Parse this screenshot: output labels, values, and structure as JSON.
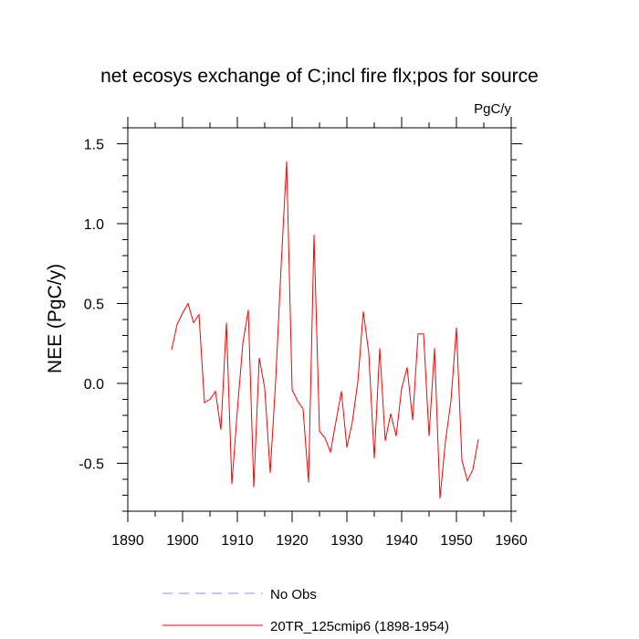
{
  "chart_data": {
    "type": "line",
    "title": "net ecosys exchange of C;incl fire flx;pos for source",
    "units_label": "PgC/y",
    "ylabel": "NEE  (PgC/y)",
    "xlabel": "",
    "xlim": [
      1890,
      1960
    ],
    "ylim": [
      -0.8,
      1.6
    ],
    "x_ticks": [
      1890,
      1900,
      1910,
      1920,
      1930,
      1940,
      1950,
      1960
    ],
    "x_tick_labels": [
      "1890",
      "1900",
      "1910",
      "1920",
      "1930",
      "1940",
      "1950",
      "1960"
    ],
    "y_ticks": [
      -0.5,
      0.0,
      0.5,
      1.0,
      1.5
    ],
    "y_tick_labels": [
      "-0.5",
      "0.0",
      "0.5",
      "1.0",
      "1.5"
    ],
    "grid": false,
    "legend_position": "bottom",
    "series": [
      {
        "name": "20TR_125cmip6 (1898-1954)",
        "color": "#ff0000",
        "style": "solid",
        "x": [
          1898,
          1899,
          1900,
          1901,
          1902,
          1903,
          1904,
          1905,
          1906,
          1907,
          1908,
          1909,
          1910,
          1911,
          1912,
          1913,
          1914,
          1915,
          1916,
          1917,
          1918,
          1919,
          1920,
          1921,
          1922,
          1923,
          1924,
          1925,
          1926,
          1927,
          1928,
          1929,
          1930,
          1931,
          1932,
          1933,
          1934,
          1935,
          1936,
          1937,
          1938,
          1939,
          1940,
          1941,
          1942,
          1943,
          1944,
          1945,
          1946,
          1947,
          1948,
          1949,
          1950,
          1951,
          1952,
          1953,
          1954
        ],
        "values": [
          0.21,
          0.37,
          0.44,
          0.5,
          0.38,
          0.43,
          -0.12,
          -0.1,
          -0.05,
          -0.29,
          0.38,
          -0.63,
          -0.17,
          0.25,
          0.46,
          -0.65,
          0.16,
          -0.03,
          -0.56,
          0.02,
          0.74,
          1.39,
          -0.04,
          -0.11,
          -0.16,
          -0.62,
          0.93,
          -0.3,
          -0.34,
          -0.43,
          -0.24,
          -0.05,
          -0.4,
          -0.24,
          0.01,
          0.45,
          0.19,
          -0.47,
          0.22,
          -0.36,
          -0.19,
          -0.33,
          -0.03,
          0.1,
          -0.23,
          0.31,
          0.31,
          -0.33,
          0.22,
          -0.72,
          -0.36,
          -0.11,
          0.35,
          -0.48,
          -0.61,
          -0.54,
          -0.35
        ]
      }
    ],
    "legend": [
      {
        "label": "No Obs",
        "color": "#8c8cff",
        "style": "dashed"
      },
      {
        "label": "20TR_125cmip6 (1898-1954)",
        "color": "#ff0000",
        "style": "solid"
      }
    ]
  }
}
